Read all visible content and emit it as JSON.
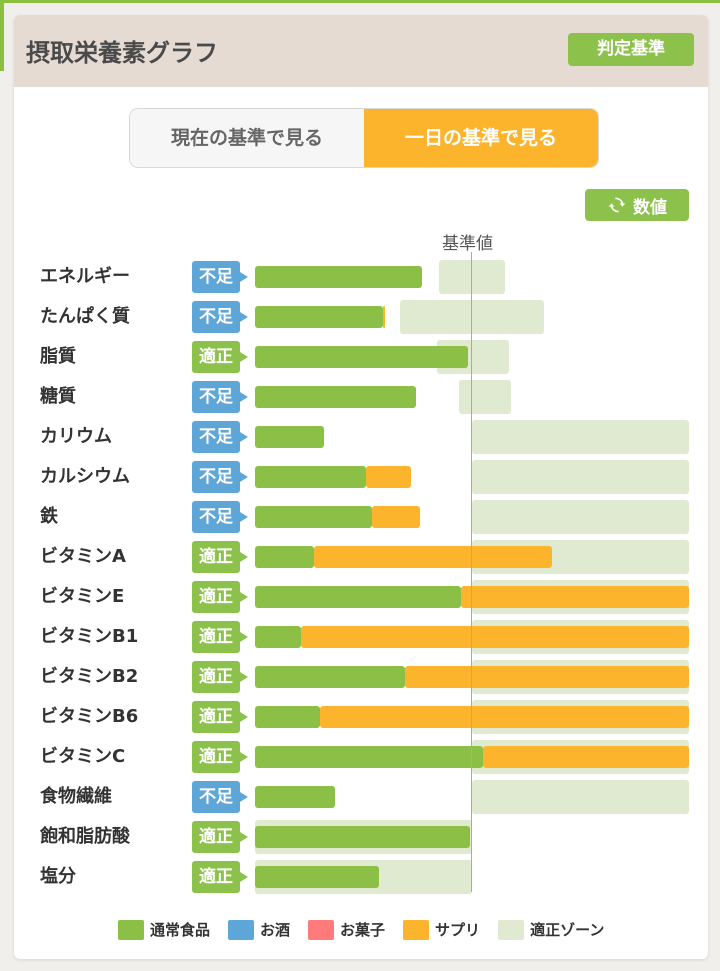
{
  "header": {
    "title": "摂取栄養素グラフ",
    "judge_button": "判定基準"
  },
  "toggle": {
    "current": "現在の基準で見る",
    "day": "一日の基準で見る",
    "selected": "day"
  },
  "numeric_button": {
    "label": "数値",
    "icon": "refresh-icon"
  },
  "reference_label": "基準値",
  "colors": {
    "food": "#8cbf45",
    "alcohol": "#5fa6d8",
    "snack": "#ff7a7a",
    "supplement": "#fbb42b",
    "zone": "#dfead0",
    "lack_badge": "#5fa6d8",
    "ok_badge": "#8cc14c"
  },
  "chart_data": {
    "type": "bar",
    "orientation": "horizontal",
    "stacked": true,
    "reference_value": 100,
    "x_unit": "% of 基準値",
    "xlim": [
      0,
      200
    ],
    "nutrients": [
      {
        "name": "エネルギー",
        "status": "不足",
        "food": 77,
        "supplement": 0,
        "zone": [
          85,
          115
        ]
      },
      {
        "name": "たんぱく質",
        "status": "不足",
        "food": 59,
        "supplement": 1,
        "zone": [
          67,
          133
        ]
      },
      {
        "name": "脂質",
        "status": "適正",
        "food": 98,
        "supplement": 0,
        "zone": [
          84,
          117
        ]
      },
      {
        "name": "糖質",
        "status": "不足",
        "food": 74,
        "supplement": 0,
        "zone": [
          94,
          118
        ]
      },
      {
        "name": "カリウム",
        "status": "不足",
        "food": 32,
        "supplement": 0,
        "zone": [
          100,
          200
        ]
      },
      {
        "name": "カルシウム",
        "status": "不足",
        "food": 51,
        "supplement": 21,
        "zone": [
          100,
          200
        ]
      },
      {
        "name": "鉄",
        "status": "不足",
        "food": 54,
        "supplement": 22,
        "zone": [
          100,
          200
        ]
      },
      {
        "name": "ビタミンA",
        "status": "適正",
        "food": 27,
        "supplement": 110,
        "zone": [
          100,
          200
        ]
      },
      {
        "name": "ビタミンE",
        "status": "適正",
        "food": 95,
        "supplement": 105,
        "zone": [
          100,
          200
        ]
      },
      {
        "name": "ビタミンB1",
        "status": "適正",
        "food": 21,
        "supplement": 179,
        "zone": [
          100,
          200
        ]
      },
      {
        "name": "ビタミンB2",
        "status": "適正",
        "food": 69,
        "supplement": 131,
        "zone": [
          100,
          200
        ]
      },
      {
        "name": "ビタミンB6",
        "status": "適正",
        "food": 30,
        "supplement": 170,
        "zone": [
          100,
          200
        ]
      },
      {
        "name": "ビタミンC",
        "status": "適正",
        "food": 105,
        "supplement": 95,
        "zone": [
          100,
          200
        ]
      },
      {
        "name": "食物繊維",
        "status": "不足",
        "food": 37,
        "supplement": 0,
        "zone": [
          100,
          200
        ]
      },
      {
        "name": "飽和脂肪酸",
        "status": "適正",
        "food": 99,
        "supplement": 0,
        "zone": [
          0,
          100
        ]
      },
      {
        "name": "塩分",
        "status": "適正",
        "food": 57,
        "supplement": 0,
        "zone": [
          0,
          100
        ]
      }
    ]
  },
  "legend": [
    {
      "label": "通常食品",
      "color": "#8cbf45"
    },
    {
      "label": "お酒",
      "color": "#5fa6d8"
    },
    {
      "label": "お菓子",
      "color": "#ff7a7a"
    },
    {
      "label": "サプリ",
      "color": "#fbb42b"
    },
    {
      "label": "適正ゾーン",
      "color": "#dfead0"
    }
  ]
}
